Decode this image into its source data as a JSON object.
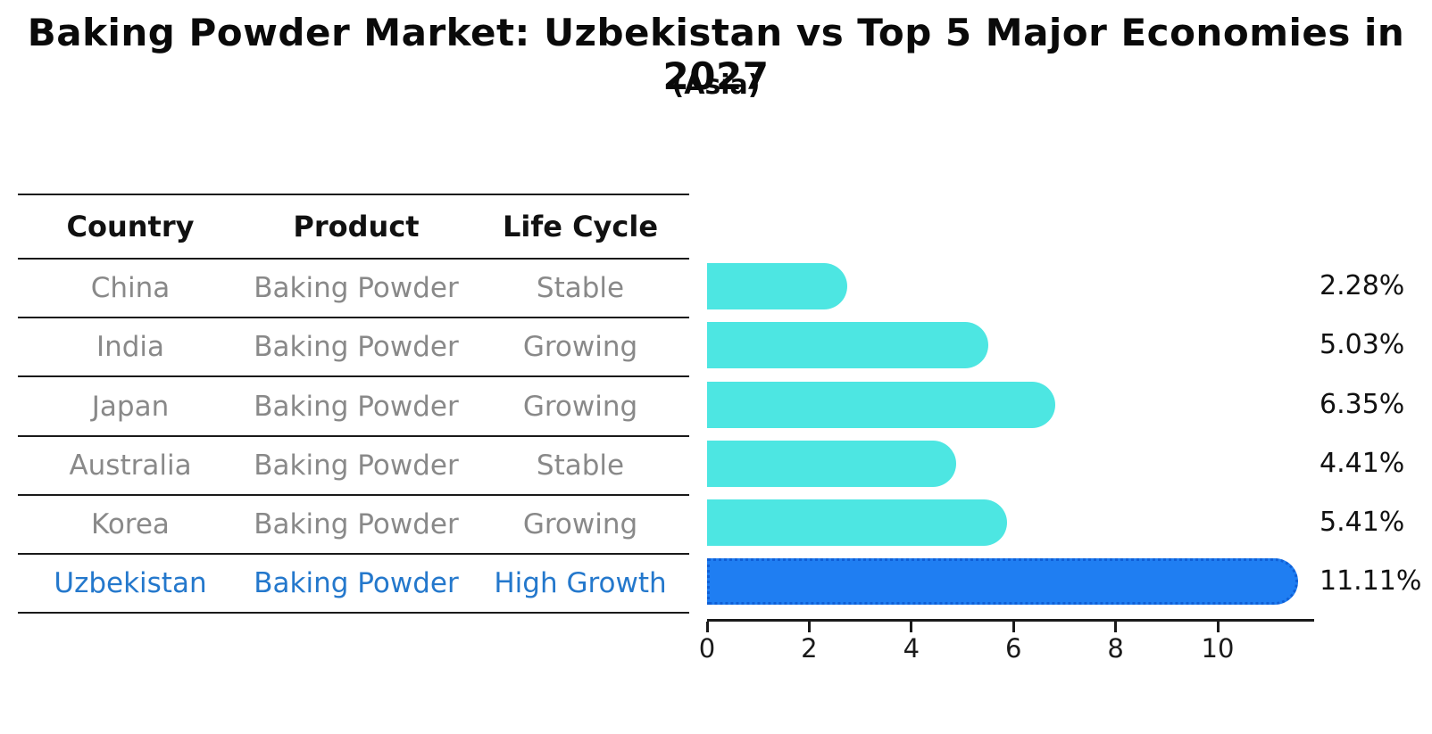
{
  "title": "Baking Powder Market: Uzbekistan vs Top 5 Major Economies in 2027",
  "subtitle": "(Asia)",
  "table": {
    "headers": [
      "Country",
      "Product",
      "Life Cycle"
    ],
    "rows": [
      {
        "country": "China",
        "product": "Baking Powder",
        "life_cycle": "Stable",
        "highlight": false
      },
      {
        "country": "India",
        "product": "Baking Powder",
        "life_cycle": "Growing",
        "highlight": false
      },
      {
        "country": "Japan",
        "product": "Baking Powder",
        "life_cycle": "Growing",
        "highlight": false
      },
      {
        "country": "Australia",
        "product": "Baking Powder",
        "life_cycle": "Stable",
        "highlight": false
      },
      {
        "country": "Korea",
        "product": "Baking Powder",
        "life_cycle": "Growing",
        "highlight": false
      },
      {
        "country": "Uzbekistan",
        "product": "Baking Powder",
        "life_cycle": "High Growth",
        "highlight": true
      }
    ]
  },
  "chart_data": {
    "type": "bar",
    "orientation": "horizontal",
    "title": "Baking Powder Market: Uzbekistan vs Top 5 Major Economies in 2027",
    "subtitle": "(Asia)",
    "categories": [
      "China",
      "India",
      "Japan",
      "Australia",
      "Korea",
      "Uzbekistan"
    ],
    "values": [
      2.28,
      5.03,
      6.35,
      4.41,
      5.41,
      11.11
    ],
    "value_labels": [
      "2.28%",
      "5.03%",
      "6.35%",
      "4.41%",
      "5.41%",
      "11.11%"
    ],
    "x_ticks": [
      0,
      2,
      4,
      6,
      8,
      10
    ],
    "xlim": [
      0,
      11.7
    ],
    "grid": false,
    "legend": false,
    "bar_color": "#4de6e2",
    "highlight_color": "#1f7ef2",
    "highlight_index": 5
  },
  "colors": {
    "bar_cyan": "#4de6e2",
    "bar_blue": "#1f7ef2",
    "highlight_text_blue": "#2478cc",
    "cell_gray": "#898989",
    "ink_black": "#1a1a1a"
  }
}
